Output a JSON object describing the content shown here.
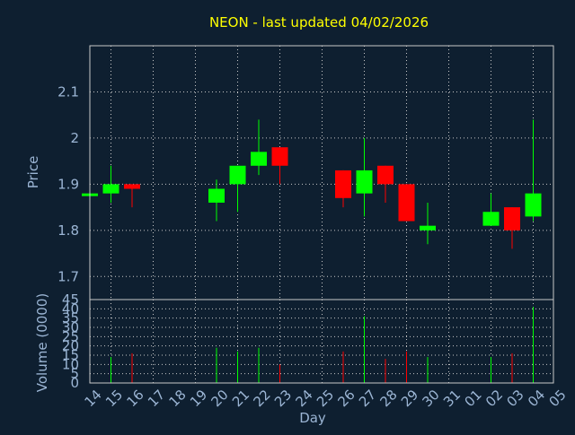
{
  "chart_data": {
    "type": "candlestick",
    "title": "NEON - last updated 04/02/2026",
    "colors": {
      "background": "#0e1f30",
      "frame": "#c8c8c8",
      "grid": "#c8c8c8",
      "text": "#9bb5d4",
      "title": "#ffff00",
      "up": "#00ff00",
      "down": "#ff0000"
    },
    "grid": true,
    "x_axis": {
      "label": "Day",
      "ticks": [
        "14",
        "15",
        "16",
        "17",
        "18",
        "19",
        "20",
        "21",
        "22",
        "23",
        "24",
        "25",
        "26",
        "27",
        "28",
        "29",
        "30",
        "31",
        "01",
        "02",
        "03",
        "04",
        "05"
      ]
    },
    "price_panel": {
      "ylabel": "Price",
      "ylim": [
        1.65,
        2.2
      ],
      "yticks": [
        "1.7",
        "1.8",
        "1.9",
        "2",
        "2.1"
      ],
      "candles": [
        {
          "x": 0,
          "open": 1.88,
          "close": 1.88,
          "high": 1.88,
          "low": 1.88
        },
        {
          "x": 1,
          "open": 1.88,
          "close": 1.9,
          "high": 1.94,
          "low": 1.86
        },
        {
          "x": 2,
          "open": 1.9,
          "close": 1.89,
          "high": 1.9,
          "low": 1.85
        },
        {
          "x": 6,
          "open": 1.86,
          "close": 1.89,
          "high": 1.91,
          "low": 1.82
        },
        {
          "x": 7,
          "open": 1.9,
          "close": 1.94,
          "high": 1.94,
          "low": 1.84
        },
        {
          "x": 8,
          "open": 1.94,
          "close": 1.97,
          "high": 2.04,
          "low": 1.92
        },
        {
          "x": 9,
          "open": 1.98,
          "close": 1.94,
          "high": 1.98,
          "low": 1.9
        },
        {
          "x": 12,
          "open": 1.93,
          "close": 1.87,
          "high": 1.93,
          "low": 1.85
        },
        {
          "x": 13,
          "open": 1.88,
          "close": 1.93,
          "high": 2.0,
          "low": 1.83
        },
        {
          "x": 14,
          "open": 1.94,
          "close": 1.9,
          "high": 1.94,
          "low": 1.86
        },
        {
          "x": 15,
          "open": 1.9,
          "close": 1.82,
          "high": 1.9,
          "low": 1.82
        },
        {
          "x": 16,
          "open": 1.8,
          "close": 1.81,
          "high": 1.86,
          "low": 1.77
        },
        {
          "x": 19,
          "open": 1.81,
          "close": 1.84,
          "high": 1.88,
          "low": 1.81
        },
        {
          "x": 20,
          "open": 1.85,
          "close": 1.8,
          "high": 1.85,
          "low": 1.76
        },
        {
          "x": 21,
          "open": 1.83,
          "close": 1.88,
          "high": 2.04,
          "low": 1.82
        }
      ]
    },
    "volume_panel": {
      "ylabel": "Volume (0000)",
      "ylim": [
        0,
        45
      ],
      "yticks": [
        "0",
        "5",
        "10",
        "15",
        "20",
        "25",
        "30",
        "35",
        "40",
        "45"
      ],
      "bars": [
        {
          "x": 1,
          "value": 14,
          "dir": "up"
        },
        {
          "x": 2,
          "value": 16,
          "dir": "down"
        },
        {
          "x": 6,
          "value": 19,
          "dir": "up"
        },
        {
          "x": 7,
          "value": 17,
          "dir": "up"
        },
        {
          "x": 8,
          "value": 19,
          "dir": "up"
        },
        {
          "x": 9,
          "value": 10,
          "dir": "down"
        },
        {
          "x": 12,
          "value": 17,
          "dir": "down"
        },
        {
          "x": 13,
          "value": 36,
          "dir": "up"
        },
        {
          "x": 14,
          "value": 13,
          "dir": "down"
        },
        {
          "x": 15,
          "value": 17,
          "dir": "down"
        },
        {
          "x": 16,
          "value": 14,
          "dir": "up"
        },
        {
          "x": 19,
          "value": 14,
          "dir": "up"
        },
        {
          "x": 20,
          "value": 16,
          "dir": "down"
        },
        {
          "x": 21,
          "value": 41,
          "dir": "up"
        }
      ]
    }
  }
}
